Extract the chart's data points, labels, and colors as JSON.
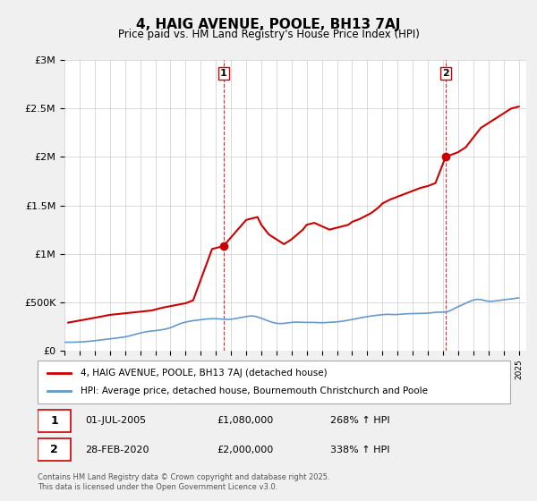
{
  "title": "4, HAIG AVENUE, POOLE, BH13 7AJ",
  "subtitle": "Price paid vs. HM Land Registry's House Price Index (HPI)",
  "ylabel_ticks": [
    "£0",
    "£500K",
    "£1M",
    "£1.5M",
    "£2M",
    "£2.5M",
    "£3M"
  ],
  "ylabel_values": [
    0,
    500000,
    1000000,
    1500000,
    2000000,
    2500000,
    3000000
  ],
  "ylim": [
    0,
    3000000
  ],
  "xlim_start": 1995.0,
  "xlim_end": 2025.5,
  "bg_color": "#f0f0f0",
  "plot_bg_color": "#ffffff",
  "red_line_color": "#cc0000",
  "blue_line_color": "#6699cc",
  "vline_color": "#cc0000",
  "marker1_date": 2005.5,
  "marker1_price": 1080000,
  "marker1_label": "1",
  "marker2_date": 2020.17,
  "marker2_price": 2000000,
  "marker2_label": "2",
  "legend_line1": "4, HAIG AVENUE, POOLE, BH13 7AJ (detached house)",
  "legend_line2": "HPI: Average price, detached house, Bournemouth Christchurch and Poole",
  "annotation1": "1     01-JUL-2005          £1,080,000          268% ↑ HPI",
  "annotation2": "2     28-FEB-2020          £2,000,000          338% ↑ HPI",
  "footer": "Contains HM Land Registry data © Crown copyright and database right 2025.\nThis data is licensed under the Open Government Licence v3.0.",
  "hpi_data_x": [
    1995.0,
    1995.25,
    1995.5,
    1995.75,
    1996.0,
    1996.25,
    1996.5,
    1996.75,
    1997.0,
    1997.25,
    1997.5,
    1997.75,
    1998.0,
    1998.25,
    1998.5,
    1998.75,
    1999.0,
    1999.25,
    1999.5,
    1999.75,
    2000.0,
    2000.25,
    2000.5,
    2000.75,
    2001.0,
    2001.25,
    2001.5,
    2001.75,
    2002.0,
    2002.25,
    2002.5,
    2002.75,
    2003.0,
    2003.25,
    2003.5,
    2003.75,
    2004.0,
    2004.25,
    2004.5,
    2004.75,
    2005.0,
    2005.25,
    2005.5,
    2005.75,
    2006.0,
    2006.25,
    2006.5,
    2006.75,
    2007.0,
    2007.25,
    2007.5,
    2007.75,
    2008.0,
    2008.25,
    2008.5,
    2008.75,
    2009.0,
    2009.25,
    2009.5,
    2009.75,
    2010.0,
    2010.25,
    2010.5,
    2010.75,
    2011.0,
    2011.25,
    2011.5,
    2011.75,
    2012.0,
    2012.25,
    2012.5,
    2012.75,
    2013.0,
    2013.25,
    2013.5,
    2013.75,
    2014.0,
    2014.25,
    2014.5,
    2014.75,
    2015.0,
    2015.25,
    2015.5,
    2015.75,
    2016.0,
    2016.25,
    2016.5,
    2016.75,
    2017.0,
    2017.25,
    2017.5,
    2017.75,
    2018.0,
    2018.25,
    2018.5,
    2018.75,
    2019.0,
    2019.25,
    2019.5,
    2019.75,
    2020.0,
    2020.25,
    2020.5,
    2020.75,
    2021.0,
    2021.25,
    2021.5,
    2021.75,
    2022.0,
    2022.25,
    2022.5,
    2022.75,
    2023.0,
    2023.25,
    2023.5,
    2023.75,
    2024.0,
    2024.25,
    2024.5,
    2024.75,
    2025.0
  ],
  "hpi_data_y": [
    88000,
    87000,
    87500,
    89000,
    90000,
    92000,
    95000,
    99000,
    103000,
    108000,
    113000,
    118000,
    122000,
    127000,
    132000,
    137000,
    143000,
    151000,
    161000,
    172000,
    182000,
    191000,
    198000,
    203000,
    207000,
    212000,
    218000,
    226000,
    237000,
    253000,
    270000,
    285000,
    295000,
    303000,
    310000,
    315000,
    320000,
    325000,
    328000,
    330000,
    330000,
    328000,
    325000,
    323000,
    325000,
    330000,
    338000,
    345000,
    352000,
    358000,
    358000,
    348000,
    335000,
    320000,
    305000,
    292000,
    283000,
    280000,
    282000,
    287000,
    292000,
    295000,
    295000,
    293000,
    292000,
    292000,
    292000,
    290000,
    289000,
    290000,
    293000,
    295000,
    298000,
    302000,
    308000,
    315000,
    322000,
    330000,
    338000,
    345000,
    352000,
    358000,
    363000,
    368000,
    372000,
    375000,
    375000,
    373000,
    374000,
    377000,
    380000,
    382000,
    383000,
    384000,
    385000,
    386000,
    388000,
    392000,
    396000,
    398000,
    398000,
    400000,
    415000,
    435000,
    455000,
    472000,
    490000,
    508000,
    522000,
    530000,
    528000,
    518000,
    510000,
    510000,
    515000,
    520000,
    525000,
    530000,
    535000,
    540000,
    545000
  ],
  "price_data_x": [
    1995.25,
    1997.0,
    1998.0,
    2000.75,
    2001.5,
    2003.0,
    2003.5,
    2004.75,
    2005.5,
    2007.0,
    2007.75,
    2008.0,
    2008.5,
    2009.5,
    2010.0,
    2010.75,
    2011.0,
    2011.5,
    2012.5,
    2013.0,
    2013.75,
    2014.0,
    2014.5,
    2015.25,
    2015.75,
    2016.0,
    2016.5,
    2017.0,
    2017.5,
    2018.0,
    2018.5,
    2019.0,
    2019.5,
    2020.17,
    2021.0,
    2021.5,
    2022.0,
    2022.5,
    2023.0,
    2023.5,
    2024.0,
    2024.5,
    2025.0
  ],
  "price_data_y": [
    290000,
    340000,
    370000,
    415000,
    445000,
    490000,
    520000,
    1050000,
    1080000,
    1350000,
    1380000,
    1300000,
    1200000,
    1100000,
    1150000,
    1250000,
    1300000,
    1320000,
    1250000,
    1270000,
    1300000,
    1330000,
    1360000,
    1420000,
    1480000,
    1520000,
    1560000,
    1590000,
    1620000,
    1650000,
    1680000,
    1700000,
    1730000,
    2000000,
    2050000,
    2100000,
    2200000,
    2300000,
    2350000,
    2400000,
    2450000,
    2500000,
    2520000
  ]
}
